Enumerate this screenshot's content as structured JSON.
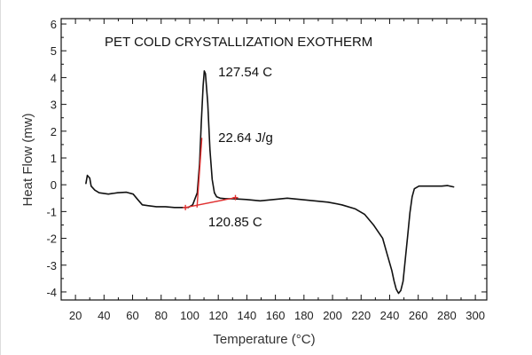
{
  "chart_data": {
    "type": "line",
    "title": "PET COLD CRYSTALLIZATION EXOTHERM",
    "xlabel": "Temperature (°C)",
    "ylabel": "Heat Flow (mw)",
    "xlim": [
      10,
      308
    ],
    "ylim": [
      -4.3,
      6.2
    ],
    "x_ticks": [
      20,
      40,
      60,
      80,
      100,
      120,
      140,
      160,
      180,
      200,
      220,
      240,
      260,
      280,
      300
    ],
    "x_minor_step": 10,
    "y_ticks": [
      -4,
      -3,
      -2,
      -1,
      0,
      1,
      2,
      3,
      4,
      5,
      6
    ],
    "y_minor_step": 0.5,
    "grid": false,
    "series": [
      {
        "name": "DSC trace",
        "color": "#111111",
        "x": [
          27.3,
          28.3,
          30.0,
          31.0,
          33.5,
          36.6,
          43.0,
          49.4,
          55.7,
          60.4,
          63.6,
          66.8,
          70.6,
          76.6,
          83.0,
          89.3,
          95.7,
          98.9,
          102.1,
          105.3,
          106.9,
          108.1,
          109.4,
          110.2,
          111.0,
          112.6,
          114.2,
          115.7,
          117.3,
          118.9,
          121.3,
          125.3,
          130.3,
          139.7,
          149.3,
          158.8,
          168.3,
          177.9,
          187.4,
          196.9,
          206.5,
          216.0,
          222.4,
          228.7,
          235.1,
          238.3,
          241.5,
          243.1,
          244.6,
          246.2,
          247.8,
          249.4,
          251.0,
          252.6,
          254.2,
          255.7,
          257.3,
          260.5,
          265.2,
          270.0,
          276.4,
          280.6,
          284.8
        ],
        "y": [
          0.05,
          0.35,
          0.25,
          -0.05,
          -0.2,
          -0.3,
          -0.35,
          -0.3,
          -0.28,
          -0.35,
          -0.55,
          -0.75,
          -0.78,
          -0.82,
          -0.82,
          -0.85,
          -0.85,
          -0.85,
          -0.75,
          -0.3,
          0.8,
          2.3,
          3.7,
          4.25,
          4.15,
          3.05,
          1.3,
          0.2,
          -0.3,
          -0.45,
          -0.5,
          -0.52,
          -0.52,
          -0.55,
          -0.6,
          -0.55,
          -0.5,
          -0.55,
          -0.6,
          -0.65,
          -0.75,
          -0.9,
          -1.1,
          -1.5,
          -2.0,
          -2.6,
          -3.2,
          -3.6,
          -3.9,
          -4.05,
          -3.95,
          -3.6,
          -2.75,
          -1.9,
          -1.05,
          -0.45,
          -0.15,
          -0.05,
          -0.05,
          -0.05,
          -0.05,
          -0.03,
          -0.08
        ]
      }
    ],
    "annotations": [
      {
        "name": "peak-temperature",
        "text": "127.54 C",
        "x": 120,
        "y": 4.05
      },
      {
        "name": "enthalpy",
        "text": "22.64 J/g",
        "x": 120,
        "y": 1.6
      },
      {
        "name": "onset-temperature",
        "text": "120.85 C",
        "x": 113,
        "y": -1.55
      }
    ],
    "baseline_line": {
      "color": "#e03030",
      "x": [
        97,
        132
      ],
      "y": [
        -0.85,
        -0.48
      ]
    },
    "tangent_line": {
      "color": "#e03030",
      "x": [
        105.1,
        108.5
      ],
      "y": [
        -0.85,
        1.75
      ]
    }
  }
}
